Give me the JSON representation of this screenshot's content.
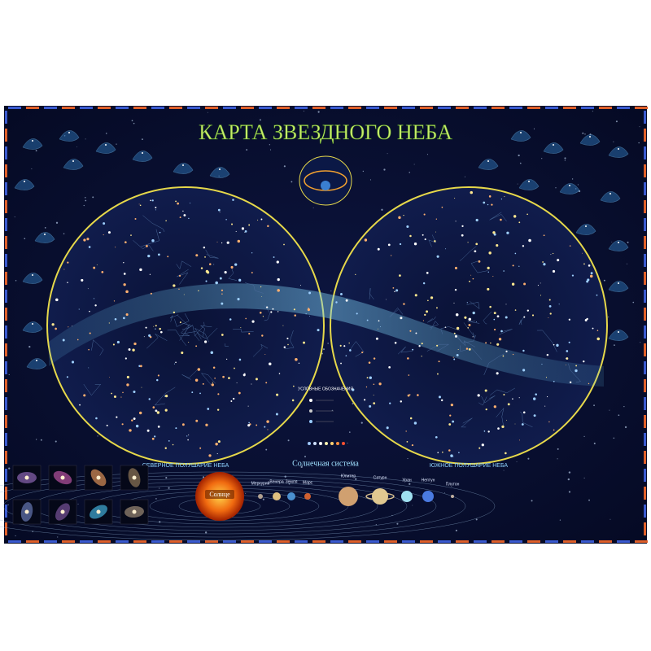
{
  "title": "КАРТА ЗВЕЗДНОГО НЕБА",
  "hemispheres": [
    {
      "label": "СЕВЕРНОЕ ПОЛУШАРИЕ НЕБА"
    },
    {
      "label": "ЮЖНОЕ ПОЛУШАРИЕ НЕБА"
    }
  ],
  "legend": {
    "title": "УСЛОВНЫЕ ОБОЗНАЧЕНИЯ"
  },
  "solar_system": {
    "title": "Солнечная система",
    "sun": "Солнце",
    "planets": [
      "Меркурий",
      "Венера",
      "Земля",
      "Марс",
      "Юпитер",
      "Сатурн",
      "Уран",
      "Нептун",
      "Плутон"
    ]
  }
}
